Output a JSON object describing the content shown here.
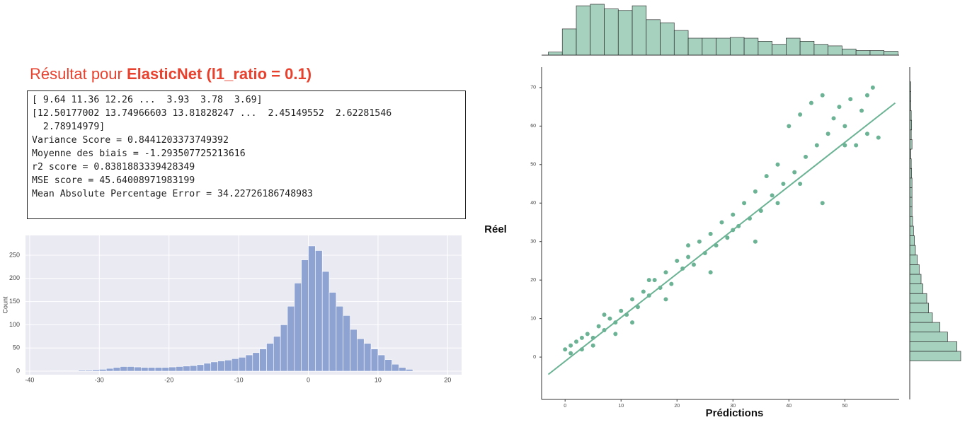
{
  "header": {
    "prefix": "Résultat pour ",
    "model": "ElasticNet (l1_ratio = 0.1)"
  },
  "output": [
    "[ 9.64 11.36 12.26 ...  3.93  3.78  3.69]",
    "[12.50177002 13.74966603 13.81828247 ...  2.45149552  2.62281546",
    "  2.78914979]",
    "Variance Score = 0.8441203373749392",
    "Moyenne des biais = -1.293507725213616",
    "r2 score = 0.8381883339428349",
    "MSE score = 45.64008971983199",
    "Mean Absolute Percentage Error = 34.22726186748983"
  ],
  "chart_data": [
    {
      "type": "histogram",
      "ylabel": "Count",
      "color": "#8fa3d3",
      "grid": true,
      "bins": [
        -37,
        -36,
        -35,
        -34,
        -33,
        -32,
        -31,
        -30,
        -29,
        -28,
        -27,
        -26,
        -25,
        -24,
        -23,
        -22,
        -21,
        -20,
        -19,
        -18,
        -17,
        -16,
        -15,
        -14,
        -13,
        -12,
        -11,
        -10,
        -9,
        -8,
        -7,
        -6,
        -5,
        -4,
        -3,
        -2,
        -1,
        0,
        1,
        2,
        3,
        4,
        5,
        6,
        7,
        8,
        9,
        10,
        11,
        12,
        13,
        14,
        15
      ],
      "counts": [
        1,
        1,
        1,
        1,
        2,
        2,
        3,
        4,
        6,
        8,
        10,
        10,
        9,
        8,
        8,
        8,
        8,
        9,
        10,
        11,
        12,
        14,
        17,
        20,
        22,
        24,
        27,
        30,
        35,
        40,
        48,
        60,
        75,
        100,
        140,
        190,
        240,
        270,
        260,
        215,
        170,
        140,
        120,
        90,
        70,
        60,
        48,
        35,
        25,
        15,
        8,
        4
      ],
      "xlim": [
        -40.6,
        22
      ],
      "ylim": [
        -7.6,
        292.7
      ],
      "xticks": [
        -40,
        -30,
        -20,
        -10,
        0,
        10,
        20
      ],
      "yticks": [
        0,
        50,
        100,
        150,
        200,
        250
      ]
    },
    {
      "type": "jointplot",
      "xlabel": "Prédictions",
      "ylabel": "Réel",
      "color": "#6bb394",
      "x": [
        0,
        1,
        2,
        3,
        4,
        5,
        6,
        7,
        8,
        9,
        10,
        11,
        12,
        13,
        14,
        15,
        16,
        17,
        18,
        19,
        20,
        21,
        22,
        23,
        24,
        25,
        26,
        27,
        28,
        29,
        30,
        31,
        32,
        33,
        34,
        35,
        36,
        37,
        38,
        39,
        40,
        41,
        42,
        43,
        44,
        45,
        46,
        47,
        48,
        49,
        50,
        51,
        52,
        53,
        54,
        55,
        56,
        1,
        3,
        5,
        7,
        9,
        12,
        15,
        18,
        22,
        26,
        30,
        34,
        38,
        42,
        46,
        50,
        54
      ],
      "y": [
        2,
        3,
        4,
        2,
        6,
        5,
        8,
        7,
        10,
        9,
        12,
        11,
        15,
        13,
        17,
        16,
        20,
        18,
        22,
        19,
        25,
        23,
        26,
        24,
        30,
        27,
        32,
        29,
        35,
        31,
        37,
        34,
        40,
        36,
        43,
        38,
        47,
        42,
        50,
        45,
        60,
        48,
        63,
        52,
        66,
        55,
        68,
        58,
        62,
        65,
        60,
        67,
        55,
        64,
        58,
        70,
        57,
        1,
        5,
        3,
        11,
        6,
        9,
        20,
        15,
        29,
        22,
        33,
        30,
        40,
        45,
        40,
        55,
        68
      ],
      "regression": {
        "x": [
          -3,
          59
        ],
        "y": [
          -4.5,
          66
        ]
      },
      "xlim": [
        -4.2,
        59.7
      ],
      "ylim": [
        -11,
        75.3
      ],
      "xticks": [
        0,
        10,
        20,
        30,
        40,
        50
      ],
      "yticks": [
        0,
        10,
        20,
        30,
        40,
        50,
        60,
        70
      ],
      "x_marginal": {
        "bins": [
          -3,
          -0.5,
          2,
          4.5,
          7,
          9.5,
          12,
          14.5,
          17,
          19.5,
          22,
          24.5,
          27,
          29.5,
          32,
          34.5,
          37,
          39.5,
          42,
          44.5,
          47,
          49.5,
          52,
          54.5,
          57,
          59.5
        ],
        "counts": [
          20,
          170,
          320,
          330,
          300,
          290,
          320,
          230,
          210,
          160,
          110,
          110,
          110,
          115,
          110,
          90,
          70,
          110,
          90,
          70,
          60,
          40,
          30,
          30,
          25
        ]
      },
      "y_marginal": {
        "bins": [
          -1,
          1.5,
          4,
          6.5,
          9,
          11.5,
          14,
          16.5,
          19,
          21.5,
          24,
          26.5,
          29,
          31.5,
          34,
          36.5,
          39,
          41.5,
          44,
          46.5,
          49,
          51.5,
          54,
          56.5,
          59,
          61.5,
          64,
          66.5,
          69,
          71.5
        ],
        "counts": [
          270,
          250,
          200,
          160,
          120,
          100,
          90,
          70,
          60,
          50,
          40,
          30,
          25,
          20,
          15,
          12,
          12,
          12,
          12,
          10,
          8,
          6,
          12,
          8,
          10,
          8,
          6,
          6,
          5
        ]
      }
    }
  ]
}
